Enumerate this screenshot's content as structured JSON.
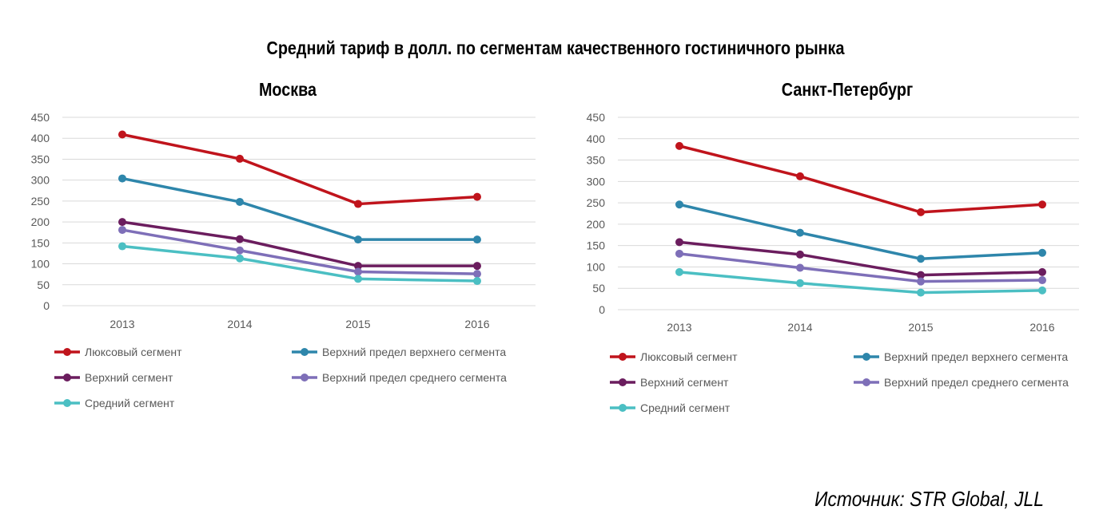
{
  "title": "Средний тариф в долл. по сегментам качественного гостиничного рынка",
  "source": "Источник: STR Global, JLL",
  "chart_data": [
    {
      "type": "line",
      "title": "Москва",
      "x": [
        "2013",
        "2014",
        "2015",
        "2016"
      ],
      "yticks": [
        "0",
        "50",
        "100",
        "150",
        "200",
        "250",
        "300",
        "350",
        "400",
        "450"
      ],
      "ylim": [
        0,
        450
      ],
      "grid": true,
      "legend_position": "bottom",
      "series": [
        {
          "name": "Люксовый сегмент",
          "color": "#C0141C",
          "values": [
            409,
            351,
            243,
            260
          ]
        },
        {
          "name": "Верхний предел верхнего сегмента",
          "color": "#2E86AB",
          "values": [
            304,
            248,
            158,
            158
          ]
        },
        {
          "name": "Верхний сегмент",
          "color": "#6B1D5E",
          "values": [
            200,
            159,
            95,
            95
          ]
        },
        {
          "name": "Верхний предел среднего сегмента",
          "color": "#7E6FB8",
          "values": [
            181,
            132,
            81,
            76
          ]
        },
        {
          "name": "Средний сегмент",
          "color": "#4BBFC3",
          "values": [
            142,
            113,
            64,
            59
          ]
        }
      ]
    },
    {
      "type": "line",
      "title": "Санкт-Петербург",
      "x": [
        "2013",
        "2014",
        "2015",
        "2016"
      ],
      "yticks": [
        "0",
        "50",
        "100",
        "150",
        "200",
        "250",
        "300",
        "350",
        "400",
        "450"
      ],
      "ylim": [
        0,
        450
      ],
      "grid": true,
      "legend_position": "bottom",
      "series": [
        {
          "name": "Люксовый сегмент",
          "color": "#C0141C",
          "values": [
            383,
            312,
            228,
            246
          ]
        },
        {
          "name": "Верхний предел верхнего сегмента",
          "color": "#2E86AB",
          "values": [
            246,
            180,
            119,
            133
          ]
        },
        {
          "name": "Верхний сегмент",
          "color": "#6B1D5E",
          "values": [
            158,
            129,
            81,
            88
          ]
        },
        {
          "name": "Верхний предел среднего сегмента",
          "color": "#7E6FB8",
          "values": [
            131,
            98,
            66,
            69
          ]
        },
        {
          "name": "Средний сегмент",
          "color": "#4BBFC3",
          "values": [
            88,
            62,
            40,
            45
          ]
        }
      ]
    }
  ]
}
